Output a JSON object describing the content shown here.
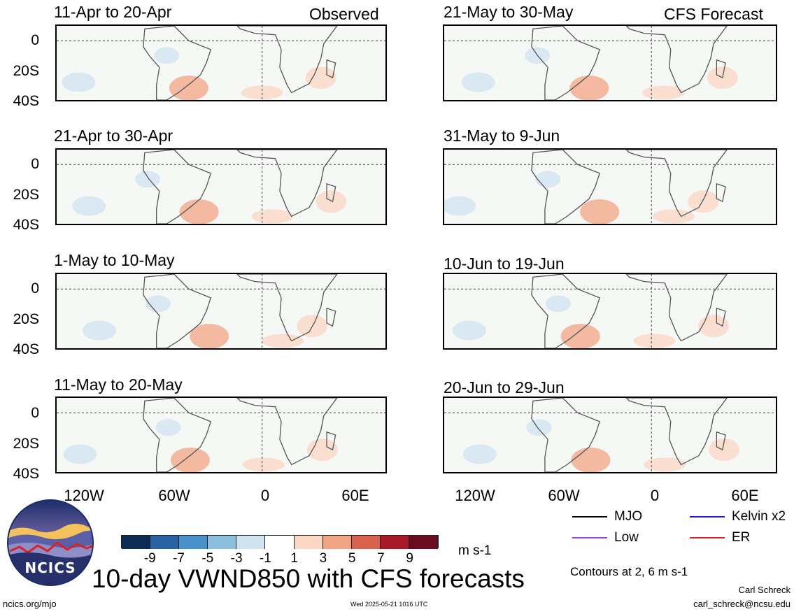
{
  "header": {
    "observed_label": "Observed",
    "forecast_label": "CFS Forecast"
  },
  "panels": {
    "observed": [
      {
        "title": "11-Apr to 20-Apr"
      },
      {
        "title": "21-Apr to 30-Apr"
      },
      {
        "title": "1-May to 10-May"
      },
      {
        "title": "11-May to 20-May"
      }
    ],
    "forecast": [
      {
        "title": "21-May to 30-May"
      },
      {
        "title": "31-May to 9-Jun"
      },
      {
        "title": "10-Jun to 19-Jun"
      },
      {
        "title": "20-Jun to 29-Jun"
      }
    ]
  },
  "axes": {
    "lat_labels": [
      "0",
      "20S",
      "40S"
    ],
    "lon_labels": [
      "120W",
      "60W",
      "0",
      "60E"
    ]
  },
  "colorbar": {
    "ticks": [
      "-9",
      "-7",
      "-5",
      "-3",
      "-1",
      "1",
      "3",
      "5",
      "7",
      "9"
    ],
    "colors": [
      "#0c2b55",
      "#2a62a6",
      "#4a90c8",
      "#8bbfdd",
      "#cfe3f0",
      "#ffffff",
      "#fbd7c4",
      "#f1a584",
      "#d9624c",
      "#a8192a",
      "#6b0c1e"
    ],
    "units": "m s-1"
  },
  "legend": {
    "items": [
      {
        "label": "MJO",
        "color": "#000000"
      },
      {
        "label": "Kelvin x2",
        "color": "#1a1adc"
      },
      {
        "label": "Low",
        "color": "#a040e0"
      },
      {
        "label": "ER",
        "color": "#e02020"
      }
    ],
    "contours_note": "Contours at 2, 6 m s-1"
  },
  "footer": {
    "logo_text": "NCICS",
    "main_title": "10-day VWND850 with CFS forecasts",
    "author": "Carl Schreck",
    "email": "carl_schreck@ncsu.edu",
    "website": "ncics.org/mjo",
    "timestamp": "Wed 2025-05-21 1016 UTC"
  }
}
